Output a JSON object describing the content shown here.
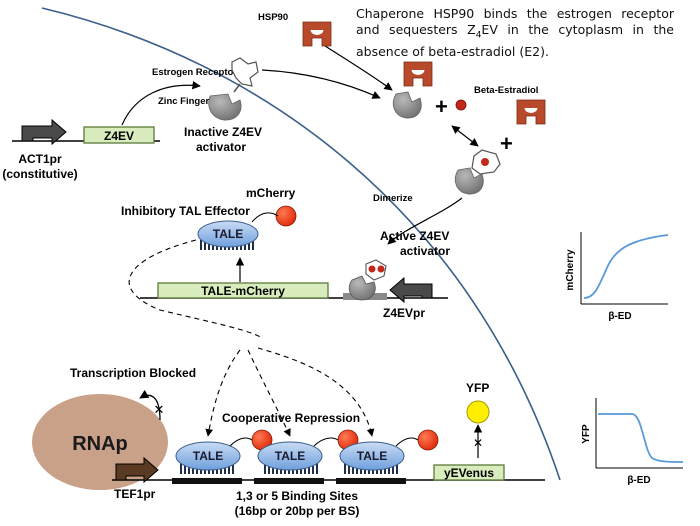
{
  "labels": {
    "hsp90": "HSP90",
    "estrogen_receptor": "Estrogen Receptor",
    "zinc_finger": "Zinc Finger",
    "beta_estradiol": "Beta-Estradiol",
    "z4ev_gene": "Z4EV",
    "act1pr_line1": "ACT1pr",
    "act1pr_line2": "(constitutive)",
    "inactive_line1": "Inactive Z4EV",
    "inactive_line2": "activator",
    "dimerize": "Dimerize",
    "active_line1": "Active Z4EV",
    "active_line2": "activator",
    "mcherry": "mCherry",
    "inhibitory_tale": "Inhibitory TAL Effector",
    "tale": "TALE",
    "tale_mcherry_gene": "TALE-mCherry",
    "z4evpr": "Z4EVpr",
    "transcription_blocked": "Transcription Blocked",
    "rnap": "RNAp",
    "cooperative_repression": "Cooperative Repression",
    "yfp": "YFP",
    "yevenus_gene": "yEVenus",
    "tef1pr": "TEF1pr",
    "binding_sites_line1": "1,3 or 5 Binding Sites",
    "binding_sites_line2": "(16bp or 20bp per BS)",
    "plus": "+"
  },
  "note": {
    "part1": "Chaperone HSP90 binds the estrogen receptor and sequesters Z",
    "subscript": "4",
    "part2": "EV in the cytoplasm in the absence of beta-estradiol (E2)."
  },
  "mini_charts": [
    {
      "ylabel": "mCherry",
      "xlabel": "β-ED",
      "trend": "increasing sigmoid"
    },
    {
      "ylabel": "YFP",
      "xlabel": "β-ED",
      "trend": "decreasing sigmoid"
    }
  ],
  "colors": {
    "membrane": "#3a5f8a",
    "gene_fill": "#d9ecbd",
    "gene_stroke": "#5a7a3a",
    "tale_fill": "#8fb4e6",
    "mcherry_red": "#e8320f",
    "yfp_yellow": "#ffee00",
    "hsp90": "#b8492b",
    "rnap": "#c9a088",
    "curve": "#5a9ad8",
    "promoter_dark": "#4a4a4a",
    "promoter_brown": "#5a3a22"
  }
}
